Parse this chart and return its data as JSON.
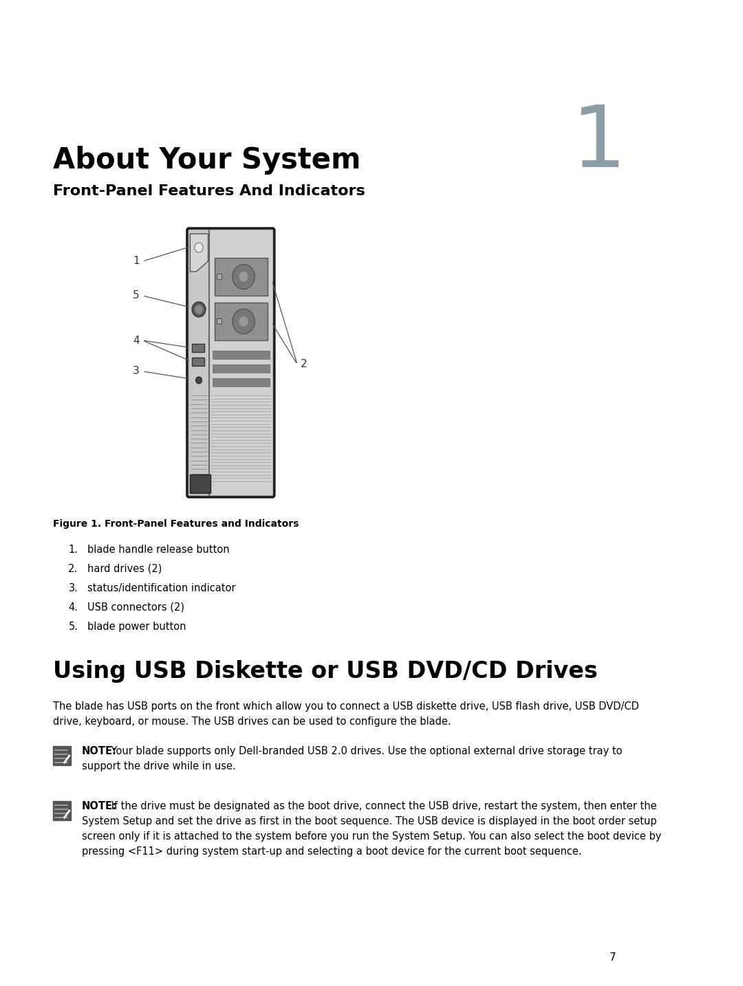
{
  "bg_color": "#ffffff",
  "page_number": "7",
  "chapter_number": "1",
  "chapter_number_color": "#8a9ea8",
  "title": "About Your System",
  "subtitle": "Front-Panel Features And Indicators",
  "figure_caption": "Figure 1. Front-Panel Features and Indicators",
  "list_items": [
    {
      "num": "1.",
      "text": "blade handle release button"
    },
    {
      "num": "2.",
      "text": "hard drives (2)"
    },
    {
      "num": "3.",
      "text": "status/identification indicator"
    },
    {
      "num": "4.",
      "text": "USB connectors (2)"
    },
    {
      "num": "5.",
      "text": "blade power button"
    }
  ],
  "section2_title": "Using USB Diskette or USB DVD/CD Drives",
  "paragraph1_line1": "The blade has USB ports on the front which allow you to connect a USB diskette drive, USB flash drive, USB DVD/CD",
  "paragraph1_line2": "drive, keyboard, or mouse. The USB drives can be used to configure the blade.",
  "note1_bold": "NOTE:",
  "note1_text": " Your blade supports only Dell-branded USB 2.0 drives. Use the optional external drive storage tray to",
  "note1_text2": "support the drive while in use.",
  "note2_bold": "NOTE:",
  "note2_text": " If the drive must be designated as the boot drive, connect the USB drive, restart the system, then enter the",
  "note2_text2": "System Setup and set the drive as first in the boot sequence. The USB device is displayed in the boot order setup",
  "note2_text3": "screen only if it is attached to the system before you run the System Setup. You can also select the boot device by",
  "note2_text4": "pressing <F11> during system start-up and selecting a boot device for the current boot sequence.",
  "text_color": "#000000",
  "label_color": "#333333"
}
